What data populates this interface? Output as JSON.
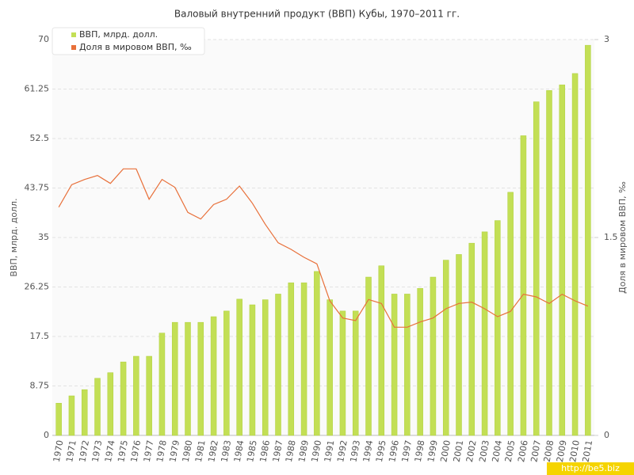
{
  "chart_data": {
    "type": "bar",
    "title": "Валовый внутренний продукт (ВВП) Кубы, 1970–2011 гг.",
    "y_label": "ВВП, млрд. долл.",
    "y2_label": "Доля в мировом ВВП, ‰",
    "watermark": "http://be5.biz",
    "categories": [
      "1970",
      "1971",
      "1972",
      "1973",
      "1974",
      "1975",
      "1976",
      "1977",
      "1978",
      "1979",
      "1980",
      "1981",
      "1982",
      "1983",
      "1984",
      "1985",
      "1986",
      "1987",
      "1988",
      "1989",
      "1990",
      "1991",
      "1992",
      "1993",
      "1994",
      "1995",
      "1996",
      "1997",
      "1998",
      "1999",
      "2000",
      "2001",
      "2002",
      "2003",
      "2004",
      "2005",
      "2006",
      "2007",
      "2008",
      "2009",
      "2010",
      "2011"
    ],
    "series": [
      {
        "name": "ВВП, млрд. долл.",
        "type": "bar",
        "color": "#c3df55",
        "values": [
          5.7,
          7,
          8.1,
          10.1,
          11.1,
          13,
          14,
          14,
          18.1,
          20,
          20,
          20,
          21,
          22,
          24.1,
          23.1,
          24,
          25,
          27,
          27,
          29,
          24,
          22,
          22,
          28,
          30,
          25,
          25,
          26,
          28,
          31,
          32,
          34,
          36,
          38,
          43,
          53,
          59,
          61,
          62,
          64,
          69
        ]
      },
      {
        "name": "Доля в мировом ВВП, ‰",
        "type": "line",
        "axis": "y2",
        "color": "#e8703a",
        "values": [
          1.73,
          1.9,
          1.94,
          1.97,
          1.91,
          2.02,
          2.02,
          1.79,
          1.94,
          1.88,
          1.69,
          1.64,
          1.75,
          1.79,
          1.89,
          1.76,
          1.6,
          1.46,
          1.41,
          1.35,
          1.3,
          1.02,
          0.89,
          0.87,
          1.03,
          1,
          0.82,
          0.82,
          0.86,
          0.89,
          0.96,
          1,
          1.01,
          0.96,
          0.9,
          0.94,
          1.07,
          1.05,
          1,
          1.07,
          1.02,
          0.98
        ]
      }
    ],
    "ylim": [
      0,
      70
    ],
    "yticks": [
      0,
      8.75,
      17.5,
      26.25,
      35,
      43.75,
      52.5,
      61.25,
      70
    ],
    "y2lim": [
      0,
      3
    ],
    "y2ticks": [
      0,
      1.5,
      3
    ],
    "grid": true,
    "legend": "top-left"
  }
}
